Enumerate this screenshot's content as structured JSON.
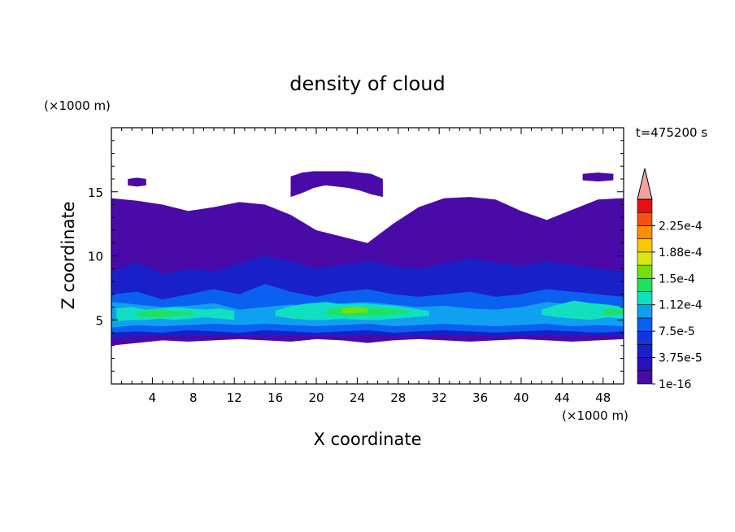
{
  "chart_data": {
    "type": "heatmap",
    "title": "density of cloud",
    "time_label": "t=475200 s",
    "xlabel": "X coordinate",
    "ylabel": "Z coordinate",
    "x_unit": "(×1000 m)",
    "y_unit": "(×1000 m)",
    "xlim": [
      0,
      50
    ],
    "ylim": [
      0,
      20
    ],
    "x_ticks": [
      4,
      8,
      12,
      16,
      20,
      24,
      28,
      32,
      36,
      40,
      44,
      48
    ],
    "y_ticks": [
      5,
      10,
      15
    ],
    "colorbar": {
      "levels": [
        1e-16,
        1.875e-05,
        3.75e-05,
        5.625e-05,
        7.5e-05,
        9.375e-05,
        0.000112,
        0.000131,
        0.00015,
        0.000169,
        0.000188,
        0.000206,
        0.000225,
        0.000244
      ],
      "labels": [
        "1e-16",
        "3.75e-5",
        "7.5e-5",
        "1.12e-4",
        "1.5e-4",
        "1.88e-4",
        "2.25e-4"
      ],
      "colors": [
        "#4a0aa8",
        "#2a10b8",
        "#1a20c8",
        "#1035e0",
        "#0a60f0",
        "#10a0f0",
        "#10e0c0",
        "#20e060",
        "#70e010",
        "#d8e810",
        "#f8c800",
        "#f89000",
        "#f85010",
        "#e81010"
      ],
      "extend_color": "#f4a0a0"
    },
    "cloud_regions": [
      {
        "level": 0,
        "x_start": 0.0,
        "x_end": 50.0,
        "z_bottom": [
          3.0,
          3.2,
          3.4,
          3.3,
          3.4,
          3.5,
          3.4,
          3.3,
          3.5,
          3.4,
          3.2,
          3.4,
          3.5,
          3.4,
          3.3,
          3.4,
          3.5,
          3.4,
          3.3,
          3.4,
          3.5
        ],
        "z_top": [
          14.5,
          14.3,
          14.0,
          13.5,
          13.8,
          14.2,
          14.0,
          13.2,
          12.0,
          11.5,
          11.0,
          12.5,
          13.8,
          14.5,
          14.6,
          14.4,
          13.5,
          12.8,
          13.6,
          14.4,
          14.5
        ]
      },
      {
        "level": 0,
        "x_start": 17.5,
        "x_end": 26.5,
        "z_bottom": [
          14.6,
          14.9,
          15.3,
          15.5,
          15.4,
          15.3,
          15.1,
          14.8,
          14.6
        ],
        "z_top": [
          16.2,
          16.5,
          16.6,
          16.6,
          16.6,
          16.6,
          16.5,
          16.4,
          16.0
        ]
      },
      {
        "level": 0,
        "x_start": 1.6,
        "x_end": 3.4,
        "z_bottom": [
          15.5,
          15.4,
          15.5
        ],
        "z_top": [
          16.0,
          16.1,
          16.0
        ]
      },
      {
        "level": 0,
        "x_start": 46.0,
        "x_end": 49.0,
        "z_bottom": [
          15.9,
          15.8,
          15.9
        ],
        "z_top": [
          16.4,
          16.5,
          16.4
        ]
      },
      {
        "level": 2,
        "x_start": 0.0,
        "x_end": 50.0,
        "z_bottom": [
          3.6,
          3.7,
          3.8,
          3.7,
          3.8,
          3.8,
          3.7,
          3.8,
          3.8,
          3.7,
          3.8,
          3.8,
          3.7,
          3.8,
          3.8,
          3.7,
          3.8,
          3.8,
          3.7,
          3.8,
          3.7
        ],
        "z_top": [
          8.8,
          9.5,
          8.6,
          9.0,
          8.8,
          9.4,
          10.0,
          9.6,
          9.0,
          9.3,
          9.6,
          9.2,
          9.0,
          9.4,
          9.8,
          9.5,
          9.2,
          9.6,
          9.3,
          9.0,
          8.8
        ]
      },
      {
        "level": 4,
        "x_start": 0.0,
        "x_end": 50.0,
        "z_bottom": [
          4.0,
          4.1,
          4.0,
          4.2,
          4.1,
          4.0,
          4.2,
          4.1,
          4.0,
          4.1,
          4.2,
          4.0,
          4.1,
          4.2,
          4.1,
          4.0,
          4.1,
          4.2,
          4.1,
          4.0,
          4.1
        ],
        "z_top": [
          7.0,
          7.2,
          6.6,
          7.0,
          7.4,
          7.0,
          7.8,
          7.2,
          6.8,
          7.2,
          7.4,
          7.0,
          6.8,
          7.0,
          7.2,
          6.8,
          7.0,
          7.4,
          7.2,
          7.0,
          6.8
        ]
      },
      {
        "level": 5,
        "x_start": 0.0,
        "x_end": 50.0,
        "z_bottom": [
          4.4,
          4.6,
          4.5,
          4.6,
          4.7,
          4.6,
          4.7,
          4.6,
          4.5,
          4.6,
          4.7,
          4.5,
          4.6,
          4.7,
          4.6,
          4.5,
          4.6,
          4.7,
          4.5,
          4.6,
          4.5
        ],
        "z_top": [
          6.4,
          6.2,
          6.0,
          6.1,
          6.3,
          5.8,
          6.0,
          6.2,
          6.0,
          6.3,
          6.4,
          6.2,
          6.0,
          6.1,
          5.9,
          5.8,
          6.0,
          6.4,
          6.2,
          6.1,
          6.0
        ]
      },
      {
        "level": 6,
        "x_start": 0.5,
        "x_end": 12.0,
        "z_bottom": [
          4.9,
          5.0,
          5.0,
          5.1,
          5.0,
          5.1,
          5.2,
          5.1,
          5.0
        ],
        "z_top": [
          5.9,
          6.0,
          5.8,
          5.9,
          6.0,
          5.9,
          5.8,
          5.9,
          5.7
        ]
      },
      {
        "level": 6,
        "x_start": 16.0,
        "x_end": 31.0,
        "z_bottom": [
          5.3,
          5.1,
          5.0,
          5.0,
          5.1,
          5.0,
          5.0,
          5.1,
          5.2,
          5.3
        ],
        "z_top": [
          5.7,
          6.1,
          6.3,
          6.4,
          6.2,
          6.3,
          6.2,
          6.1,
          5.9,
          5.7
        ]
      },
      {
        "level": 6,
        "x_start": 42.0,
        "x_end": 50.0,
        "z_bottom": [
          5.4,
          5.2,
          5.1,
          5.0,
          5.2,
          5.1
        ],
        "z_top": [
          5.8,
          6.2,
          6.5,
          6.3,
          6.2,
          6.0
        ]
      },
      {
        "level": 7,
        "x_start": 2.5,
        "x_end": 8.0,
        "z_bottom": [
          5.3,
          5.2,
          5.3,
          5.4
        ],
        "z_top": [
          5.6,
          5.8,
          5.7,
          5.6
        ]
      },
      {
        "level": 7,
        "x_start": 21.0,
        "x_end": 29.0,
        "z_bottom": [
          5.4,
          5.3,
          5.3,
          5.4,
          5.5
        ],
        "z_top": [
          5.8,
          6.0,
          5.9,
          5.9,
          5.7
        ]
      },
      {
        "level": 7,
        "x_start": 48.0,
        "x_end": 50.0,
        "z_bottom": [
          5.4,
          5.4,
          5.5
        ],
        "z_top": [
          5.8,
          5.9,
          5.8
        ]
      },
      {
        "level": 8,
        "x_start": 22.5,
        "x_end": 25.0,
        "z_bottom": [
          5.5,
          5.5,
          5.6
        ],
        "z_top": [
          5.9,
          6.0,
          5.9
        ]
      }
    ]
  }
}
